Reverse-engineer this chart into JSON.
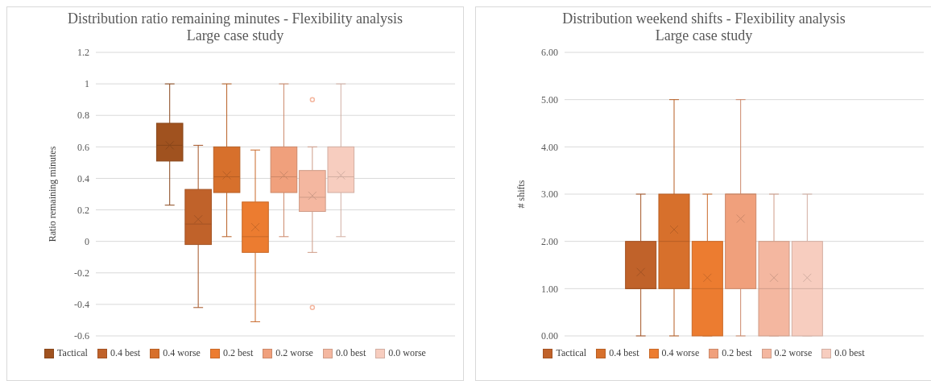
{
  "chart_data": [
    {
      "type": "box",
      "title": "Distribution ratio remaining minutes - Flexibility analysis",
      "subtitle": "Large case study",
      "ylabel": "Ratio remaining minutes",
      "categories": [
        null
      ],
      "ylim": [
        -0.6,
        1.2
      ],
      "yticks": [
        -0.6,
        -0.4,
        -0.2,
        0,
        0.2,
        0.4,
        0.6,
        0.8,
        1,
        1.2
      ],
      "grid": "y",
      "legend": "bottom",
      "tick_labels": "y",
      "series": [
        {
          "name": "Tactical",
          "color": "#a0521f",
          "boxes": [
            {
              "low": 0.23,
              "q1": 0.51,
              "median": 0.61,
              "q3": 0.75,
              "high": 1,
              "mean": 0.61
            }
          ]
        },
        {
          "name": "0.4 best",
          "color": "#c0622a",
          "boxes": [
            {
              "low": -0.42,
              "q1": -0.02,
              "median": 0.11,
              "q3": 0.33,
              "high": 0.61,
              "mean": 0.14
            }
          ]
        },
        {
          "name": "0.4 worse",
          "color": "#d7702c",
          "boxes": [
            {
              "low": 0.03,
              "q1": 0.31,
              "median": 0.41,
              "q3": 0.6,
              "high": 1,
              "mean": 0.42
            }
          ]
        },
        {
          "name": "0.2 best",
          "color": "#ec7c30",
          "boxes": [
            {
              "low": -0.51,
              "q1": -0.07,
              "median": 0.03,
              "q3": 0.25,
              "high": 0.58,
              "mean": 0.09
            }
          ]
        },
        {
          "name": "0.2 worse",
          "color": "#f0a07c",
          "boxes": [
            {
              "low": 0.03,
              "q1": 0.31,
              "median": 0.41,
              "q3": 0.6,
              "high": 1,
              "mean": 0.42
            }
          ]
        },
        {
          "name": "0.0 best",
          "color": "#f4b7a0",
          "boxes": [
            {
              "low": -0.07,
              "q1": 0.19,
              "median": 0.28,
              "q3": 0.45,
              "high": 0.6,
              "mean": 0.29,
              "outliers": [
                0.9,
                -0.42
              ]
            }
          ]
        },
        {
          "name": "0.0 worse",
          "color": "#f7cdbf",
          "boxes": [
            {
              "low": 0.03,
              "q1": 0.31,
              "median": 0.41,
              "q3": 0.6,
              "high": 1,
              "mean": 0.42
            }
          ]
        }
      ]
    },
    {
      "type": "box",
      "title": "Distribution weekend shifts - Flexibility analysis",
      "subtitle": "Large case study",
      "ylabel": "# shifts",
      "categories": [
        null
      ],
      "ylim": [
        0,
        6
      ],
      "yticks": [
        {
          "value": 0,
          "label": "0.00"
        },
        {
          "value": 1,
          "label": "1.00"
        },
        {
          "value": 2,
          "label": "2.00"
        },
        {
          "value": 3,
          "label": "3.00"
        },
        {
          "value": 4,
          "label": "4.00"
        },
        {
          "value": 5,
          "label": "5.00"
        },
        {
          "value": 6,
          "label": "6.00"
        }
      ],
      "grid": "y",
      "legend": "bottom",
      "tick_labels": "y",
      "series": [
        {
          "name": "Tactical",
          "color": "#c0622a",
          "boxes": [
            {
              "low": 0,
              "q1": 1,
              "median": 1,
              "q3": 2,
              "high": 3,
              "mean": 1.35
            }
          ]
        },
        {
          "name": "0.4 best",
          "color": "#d7702c",
          "boxes": [
            {
              "low": 0,
              "q1": 1,
              "median": 2,
              "q3": 3,
              "high": 5,
              "mean": 2.25
            }
          ]
        },
        {
          "name": "0.4 worse",
          "color": "#ec7c30",
          "boxes": [
            {
              "low": 0,
              "q1": 0,
              "median": 1,
              "q3": 2,
              "high": 3,
              "mean": 1.23
            }
          ]
        },
        {
          "name": "0.2 best",
          "color": "#f0a07c",
          "boxes": [
            {
              "low": 0,
              "q1": 1,
              "median": 3,
              "q3": 3,
              "high": 5,
              "mean": 2.48
            }
          ]
        },
        {
          "name": "0.2 worse",
          "color": "#f4b7a0",
          "boxes": [
            {
              "low": 0,
              "q1": 0,
              "median": 1,
              "q3": 2,
              "high": 3,
              "mean": 1.23
            }
          ]
        },
        {
          "name": "0.0 best",
          "color": "#f7cdbf",
          "boxes": [
            {
              "low": 0,
              "q1": 0,
              "median": 1,
              "q3": 2,
              "high": 3,
              "mean": 1.23
            }
          ]
        }
      ]
    }
  ]
}
